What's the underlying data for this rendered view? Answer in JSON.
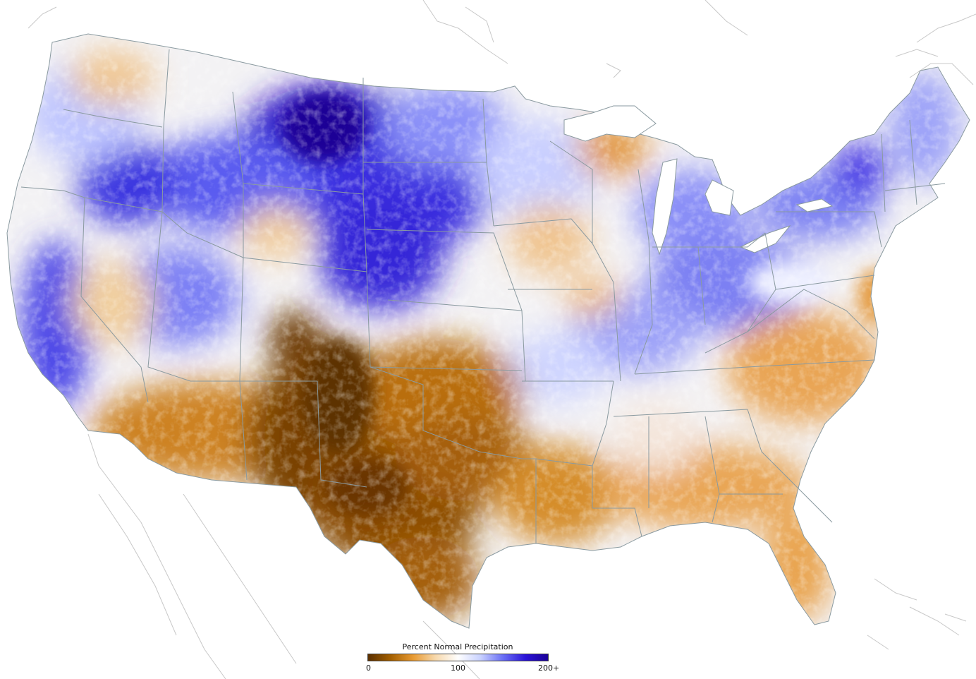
{
  "legend": {
    "title": "Percent Normal Precipitation",
    "ticks": [
      "0",
      "100",
      "200+"
    ],
    "colors": [
      "#5a2f00",
      "#a35f00",
      "#e89a32",
      "#f7d9ad",
      "#ffffff",
      "#c9d2ff",
      "#6a6ff5",
      "#2a13d8",
      "#1a0096"
    ]
  },
  "palette": {
    "dry_dark": "#6b3a00",
    "dry": "#c9780f",
    "dry_light": "#efc08a",
    "near_normal": "#f6f3f0",
    "wet_light": "#c2ccff",
    "wet": "#5a5ef0",
    "wet_dark": "#1e00a8",
    "border": "#8a9aa0",
    "outline": "#b8b8b8"
  }
}
